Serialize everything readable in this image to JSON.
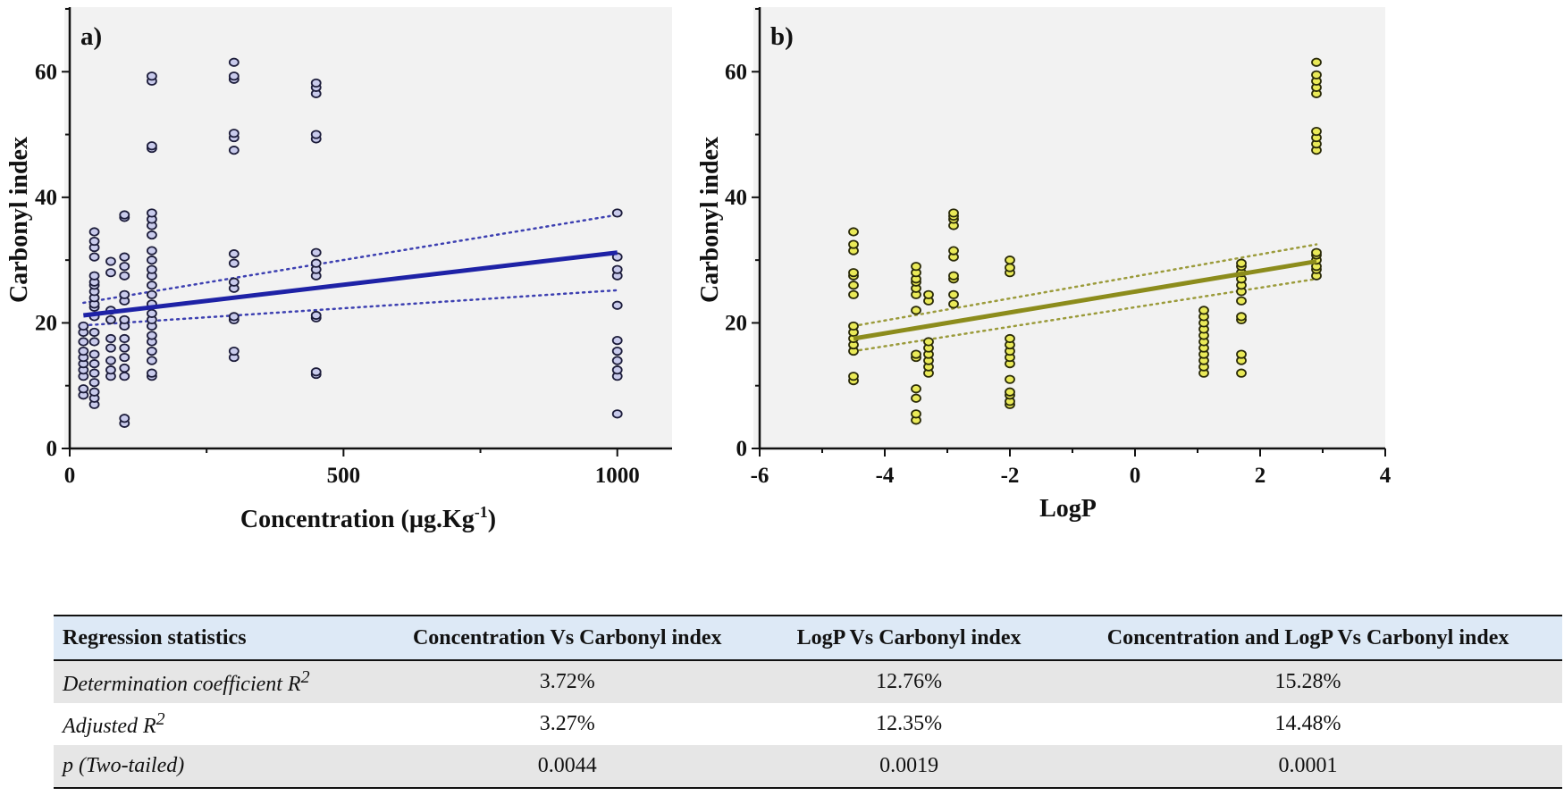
{
  "chart_data": [
    {
      "type": "scatter",
      "panel_label": "a)",
      "xlabel": "Concentration (µg.Kg",
      "xlabel_sup": "-1",
      "xlabel_close": ")",
      "ylabel": "Carbonyl index",
      "xlim": [
        0,
        1100
      ],
      "ylim": [
        0,
        70
      ],
      "xticks": [
        0,
        500,
        1000
      ],
      "yticks": [
        0,
        20,
        40,
        60
      ],
      "marker_fill": "#c9cbec",
      "marker_stroke": "#1c1c3a",
      "line_color": "#1e22a6",
      "regression": {
        "x": [
          25,
          1000
        ],
        "y": [
          21.2,
          31.2
        ]
      },
      "ci_upper": {
        "x": [
          25,
          1000
        ],
        "y": [
          23.2,
          37.2
        ]
      },
      "ci_lower": {
        "x": [
          25,
          1000
        ],
        "y": [
          19.6,
          25.2
        ]
      },
      "points": [
        {
          "x": 25,
          "y": [
            8.5,
            9.5,
            11.5,
            12.5,
            13.5,
            14.5,
            15.5,
            17,
            18.5,
            19.5
          ]
        },
        {
          "x": 45,
          "y": [
            7,
            8,
            9,
            10.5,
            12,
            13.5,
            15,
            17,
            18.5,
            21,
            22.5,
            23,
            24,
            25,
            26,
            26.5,
            27.5,
            30.5,
            32,
            33,
            34.5
          ]
        },
        {
          "x": 75,
          "y": [
            11.5,
            12.5,
            14,
            16,
            17.5,
            20.5,
            22,
            28,
            29.8
          ]
        },
        {
          "x": 100,
          "y": [
            4,
            4.8,
            11.5,
            12.8,
            14.5,
            16,
            17.5,
            19.5,
            20.5,
            23.5,
            24.5,
            27.5,
            29,
            30.5,
            36.8,
            37.2
          ]
        },
        {
          "x": 150,
          "y": [
            11.5,
            12,
            14,
            15.5,
            17,
            18,
            19.5,
            20.5,
            21.5,
            23,
            24.5,
            26,
            27.5,
            28.5,
            30,
            31.5,
            34,
            35.5,
            36.5,
            37.5,
            47.8,
            48.2,
            58.5,
            59.3
          ]
        },
        {
          "x": 300,
          "y": [
            14.5,
            15.5,
            20.5,
            21,
            25.5,
            26.5,
            29.5,
            31,
            47.5,
            49.5,
            50.2,
            58.8,
            59.3,
            61.5
          ]
        },
        {
          "x": 450,
          "y": [
            11.8,
            12.2,
            20.8,
            21.2,
            27.5,
            28.5,
            29.5,
            31.2,
            49.3,
            50,
            56.5,
            57.5,
            58.2
          ]
        },
        {
          "x": 1000,
          "y": [
            5.5,
            11.5,
            12.5,
            14,
            15.5,
            17.2,
            22.8,
            27.5,
            28.5,
            30.5,
            37.5
          ]
        }
      ]
    },
    {
      "type": "scatter",
      "panel_label": "b)",
      "xlabel": "LogP",
      "ylabel": "Carbonyl index",
      "xlim": [
        -6,
        4
      ],
      "ylim": [
        0,
        70
      ],
      "xticks": [
        -6,
        -4,
        -2,
        0,
        2,
        4
      ],
      "yticks": [
        0,
        20,
        40,
        60
      ],
      "marker_fill": "#eaea58",
      "marker_stroke": "#2a2a08",
      "line_color": "#8c8c1c",
      "regression": {
        "x": [
          -4.5,
          2.9
        ],
        "y": [
          17.5,
          29.8
        ]
      },
      "ci_upper": {
        "x": [
          -4.5,
          2.9
        ],
        "y": [
          19.5,
          32.5
        ]
      },
      "ci_lower": {
        "x": [
          -4.5,
          2.9
        ],
        "y": [
          15.5,
          27
        ]
      },
      "points": [
        {
          "x": -4.5,
          "y": [
            10.8,
            11.5,
            15.5,
            16.5,
            17.5,
            18.5,
            19.5,
            24.5,
            26,
            27.5,
            28,
            31.5,
            32.5,
            34.5
          ]
        },
        {
          "x": -3.5,
          "y": [
            4.5,
            5.5,
            8,
            9.5,
            14.5,
            15,
            22,
            24.5,
            25.5,
            26.5,
            27,
            28,
            29
          ]
        },
        {
          "x": -3.3,
          "y": [
            12,
            13,
            14,
            15,
            16,
            17,
            23.5,
            24.5
          ]
        },
        {
          "x": -2.9,
          "y": [
            23,
            24.5,
            27,
            27.5,
            30.5,
            31.5,
            35.5,
            36.5,
            37,
            37.5
          ]
        },
        {
          "x": -2.0,
          "y": [
            7,
            7.5,
            8.5,
            9,
            11,
            13.5,
            14.5,
            15.5,
            16.5,
            17.5,
            28,
            28.8,
            30
          ]
        },
        {
          "x": 1.1,
          "y": [
            12,
            13,
            14,
            15,
            16,
            17,
            18,
            19,
            20,
            21,
            22
          ]
        },
        {
          "x": 1.7,
          "y": [
            12,
            14,
            15,
            20.5,
            21,
            23.5,
            25,
            26,
            27,
            28,
            29,
            29.5
          ]
        },
        {
          "x": 2.9,
          "y": [
            27.5,
            28.5,
            29,
            30,
            30.8,
            31.2,
            47.5,
            48.5,
            49.5,
            50.5,
            56.5,
            57.5,
            58.5,
            59.5,
            61.5
          ]
        }
      ]
    }
  ],
  "table": {
    "headers": [
      "Regression statistics",
      "Concentration Vs Carbonyl index",
      "LogP Vs Carbonyl index",
      "Concentration and LogP Vs Carbonyl index"
    ],
    "rows": [
      {
        "label": "Determination coefficient R",
        "label_sup": "2",
        "values": [
          "3.72%",
          "12.76%",
          "15.28%"
        ]
      },
      {
        "label": "Adjusted R",
        "label_sup": "2",
        "values": [
          "3.27%",
          "12.35%",
          "14.48%"
        ]
      },
      {
        "label": "p (Two-tailed)",
        "label_sup": "",
        "values": [
          "0.0044",
          "0.0019",
          "0.0001"
        ]
      }
    ]
  }
}
